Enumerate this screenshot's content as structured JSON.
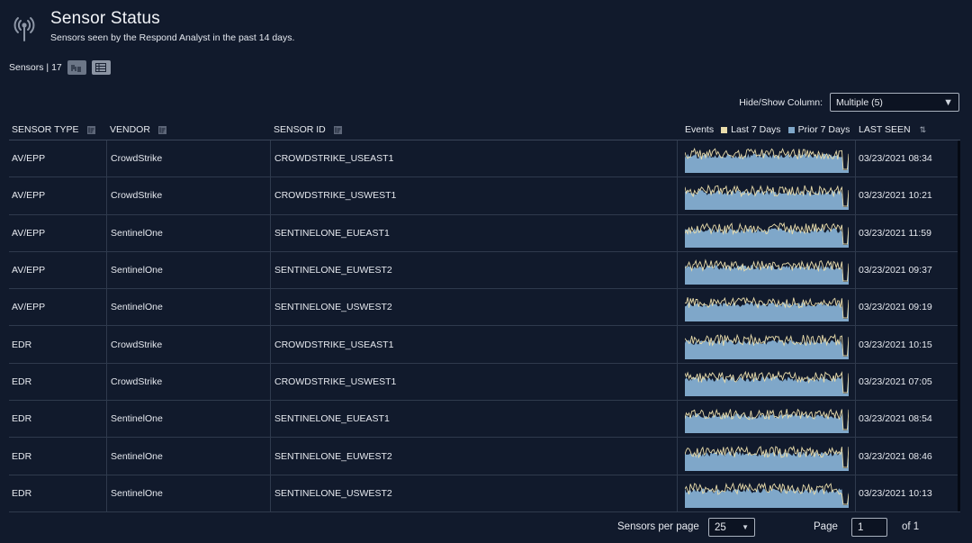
{
  "header": {
    "title": "Sensor Status",
    "subtitle": "Sensors seen by the Respond Analyst in the past 14 days."
  },
  "summary": {
    "label": "Sensors | 17"
  },
  "column_picker": {
    "label": "Hide/Show Column:",
    "value": "Multiple (5)"
  },
  "columns": {
    "type": "SENSOR TYPE",
    "vendor": "VENDOR",
    "id": "SENSOR ID",
    "events": "Events",
    "legend_last": "Last 7 Days",
    "legend_prior": "Prior 7 Days",
    "seen": "LAST SEEN"
  },
  "colors": {
    "last7": "#e9dcab",
    "prior7": "#7fa7c9",
    "background": "#111a2c"
  },
  "rows": [
    {
      "type": "AV/EPP",
      "vendor": "CrowdStrike",
      "id": "CROWDSTRIKE_USEAST1",
      "seen": "03/23/2021 08:34"
    },
    {
      "type": "AV/EPP",
      "vendor": "CrowdStrike",
      "id": "CROWDSTRIKE_USWEST1",
      "seen": "03/23/2021 10:21"
    },
    {
      "type": "AV/EPP",
      "vendor": "SentinelOne",
      "id": "SENTINELONE_EUEAST1",
      "seen": "03/23/2021 11:59"
    },
    {
      "type": "AV/EPP",
      "vendor": "SentinelOne",
      "id": "SENTINELONE_EUWEST2",
      "seen": "03/23/2021 09:37"
    },
    {
      "type": "AV/EPP",
      "vendor": "SentinelOne",
      "id": "SENTINELONE_USWEST2",
      "seen": "03/23/2021 09:19"
    },
    {
      "type": "EDR",
      "vendor": "CrowdStrike",
      "id": "CROWDSTRIKE_USEAST1",
      "seen": "03/23/2021 10:15"
    },
    {
      "type": "EDR",
      "vendor": "CrowdStrike",
      "id": "CROWDSTRIKE_USWEST1",
      "seen": "03/23/2021 07:05"
    },
    {
      "type": "EDR",
      "vendor": "SentinelOne",
      "id": "SENTINELONE_EUEAST1",
      "seen": "03/23/2021 08:54"
    },
    {
      "type": "EDR",
      "vendor": "SentinelOne",
      "id": "SENTINELONE_EUWEST2",
      "seen": "03/23/2021 08:46"
    },
    {
      "type": "EDR",
      "vendor": "SentinelOne",
      "id": "SENTINELONE_USWEST2",
      "seen": "03/23/2021 10:13"
    }
  ],
  "pagination": {
    "per_page_label": "Sensors per page",
    "per_page": "25",
    "page_label": "Page",
    "page": "1",
    "of": "of 1"
  }
}
